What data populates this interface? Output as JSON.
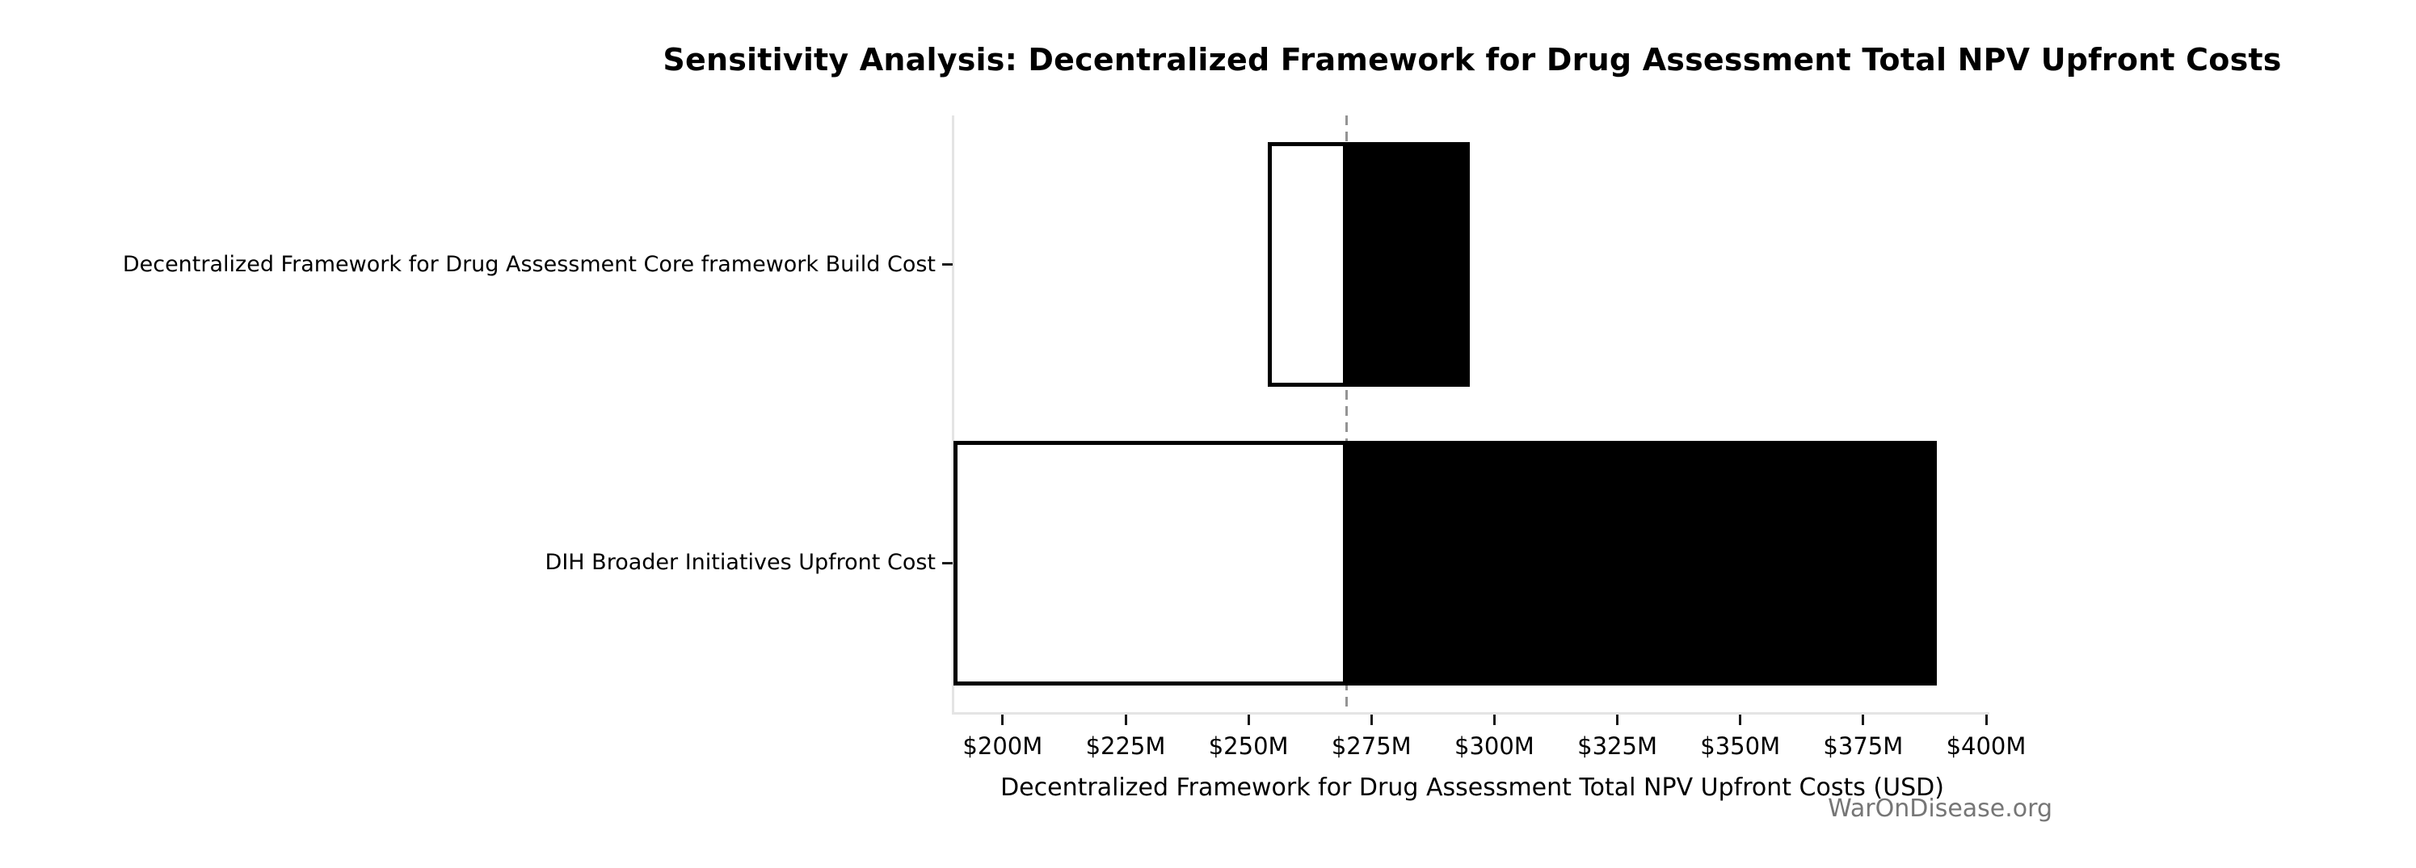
{
  "chart_data": {
    "type": "bar",
    "variant": "tornado-sensitivity",
    "orientation": "horizontal",
    "title": "Sensitivity Analysis: Decentralized Framework for Drug Assessment Total NPV Upfront Costs",
    "xlabel": "Decentralized Framework for Drug Assessment Total NPV Upfront Costs (USD)",
    "watermark": "WarOnDisease.org",
    "xlim": [
      190,
      400
    ],
    "baseline": 270,
    "x_ticks": [
      {
        "value": 200,
        "label": "$200M"
      },
      {
        "value": 225,
        "label": "$225M"
      },
      {
        "value": 250,
        "label": "$250M"
      },
      {
        "value": 275,
        "label": "$275M"
      },
      {
        "value": 300,
        "label": "$300M"
      },
      {
        "value": 325,
        "label": "$325M"
      },
      {
        "value": 350,
        "label": "$350M"
      },
      {
        "value": 375,
        "label": "$375M"
      },
      {
        "value": 400,
        "label": "$400M"
      }
    ],
    "bars": [
      {
        "label": "Decentralized Framework for Drug Assessment Core framework Build Cost",
        "low": 254,
        "high": 295
      },
      {
        "label": "DIH Broader Initiatives Upfront Cost",
        "low": 190,
        "high": 390
      }
    ],
    "grid": false,
    "legend": false,
    "colors": {
      "bar_fill_low_side": "#ffffff",
      "bar_edge": "#000000",
      "bar_fill_high_side": "#000000",
      "baseline_dash": "#949494",
      "spine": "#e4e4e4",
      "text": "#000000",
      "watermark_text": "#767676",
      "background": "#ffffff"
    }
  }
}
